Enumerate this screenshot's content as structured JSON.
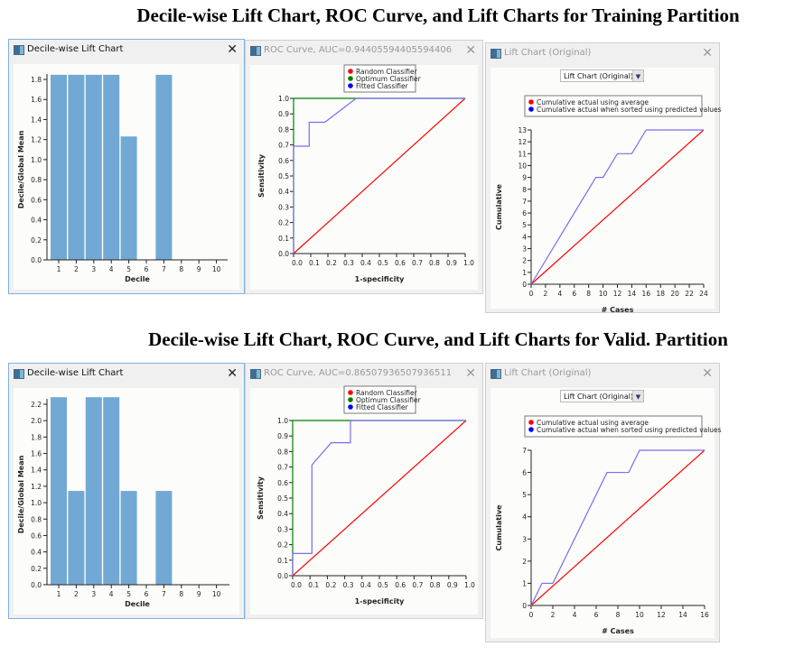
{
  "headings": {
    "training": "Decile-wise Lift Chart, ROC Curve, and Lift Charts for Training Partition",
    "valid": "Decile-wise Lift Chart, ROC Curve, and Lift Charts for Valid. Partition"
  },
  "colors": {
    "bar": "#72a9d4",
    "random": "#ff0000",
    "optimum": "#008000",
    "fitted": "#0000ff",
    "fitted_line": "#7b6cf0"
  },
  "chart_data": [
    {
      "id": "train-decile",
      "type": "bar",
      "title": "Decile-wise Lift Chart",
      "xlabel": "Decile",
      "ylabel": "Decile/Global Mean",
      "categories": [
        "1",
        "2",
        "3",
        "4",
        "5",
        "6",
        "7",
        "8",
        "9",
        "10"
      ],
      "values": [
        1.846,
        1.846,
        1.846,
        1.846,
        1.231,
        0,
        1.846,
        0,
        0,
        0
      ],
      "yticks": [
        "0.0",
        "0.2",
        "0.4",
        "0.6",
        "0.8",
        "1.0",
        "1.2",
        "1.4",
        "1.6",
        "1.8"
      ],
      "ylim": [
        0,
        1.8
      ]
    },
    {
      "id": "train-roc",
      "type": "line",
      "title": "ROC Curve, AUC=0.94405594405594406",
      "xlabel": "1-specificity",
      "ylabel": "Sensitivity",
      "ticks": [
        "0.0",
        "0.1",
        "0.2",
        "0.3",
        "0.4",
        "0.5",
        "0.6",
        "0.7",
        "0.8",
        "0.9",
        "1.0"
      ],
      "legend": [
        "Random Classifier",
        "Optimum Classifier",
        "Fitted Classifier"
      ],
      "series": [
        {
          "name": "Random Classifier",
          "points": [
            [
              0,
              0
            ],
            [
              1,
              1
            ]
          ]
        },
        {
          "name": "Optimum Classifier",
          "points": [
            [
              0,
              0
            ],
            [
              0,
              1
            ],
            [
              1,
              1
            ]
          ]
        },
        {
          "name": "Fitted Classifier",
          "points": [
            [
              0,
              0
            ],
            [
              0,
              0.692
            ],
            [
              0.091,
              0.692
            ],
            [
              0.091,
              0.846
            ],
            [
              0.182,
              0.846
            ],
            [
              0.364,
              1
            ],
            [
              1,
              1
            ]
          ]
        }
      ]
    },
    {
      "id": "train-lift",
      "type": "line",
      "title": "Lift Chart (Original)",
      "dropdown": "Lift Chart (Original)",
      "xlabel": "# Cases",
      "ylabel": "Cumulative",
      "xticks": [
        "0",
        "2",
        "4",
        "6",
        "8",
        "10",
        "12",
        "14",
        "16",
        "18",
        "20",
        "22",
        "24"
      ],
      "xlim": [
        0,
        24
      ],
      "yticks": [
        "0",
        "1",
        "2",
        "3",
        "4",
        "5",
        "6",
        "7",
        "8",
        "9",
        "10",
        "11",
        "12",
        "13"
      ],
      "ylim": [
        0,
        13
      ],
      "legend": [
        "Cumulative actual using average",
        "Cumulative actual when sorted using predicted values"
      ],
      "series": [
        {
          "name": "Cumulative actual using average",
          "points": [
            [
              0,
              0
            ],
            [
              24,
              13
            ]
          ]
        },
        {
          "name": "Cumulative actual when sorted using predicted values",
          "points": [
            [
              0,
              0
            ],
            [
              9,
              9
            ],
            [
              10,
              9
            ],
            [
              12,
              11
            ],
            [
              14,
              11
            ],
            [
              16,
              13
            ],
            [
              24,
              13
            ]
          ]
        }
      ]
    },
    {
      "id": "valid-decile",
      "type": "bar",
      "title": "Decile-wise Lift Chart",
      "xlabel": "Decile",
      "ylabel": "Decile/Global Mean",
      "categories": [
        "1",
        "2",
        "3",
        "4",
        "5",
        "6",
        "7",
        "8",
        "9",
        "10"
      ],
      "values": [
        2.286,
        1.143,
        2.286,
        2.286,
        1.143,
        0,
        1.143,
        0,
        0,
        0
      ],
      "yticks": [
        "0.0",
        "0.2",
        "0.4",
        "0.6",
        "0.8",
        "1.0",
        "1.2",
        "1.4",
        "1.6",
        "1.8",
        "2.0",
        "2.2"
      ],
      "ylim": [
        0,
        2.2
      ]
    },
    {
      "id": "valid-roc",
      "type": "line",
      "title": "ROC Curve, AUC=0.86507936507936511",
      "xlabel": "1-specificity",
      "ylabel": "Sensitivity",
      "ticks": [
        "0.0",
        "0.1",
        "0.2",
        "0.3",
        "0.4",
        "0.5",
        "0.6",
        "0.7",
        "0.8",
        "0.9",
        "1.0"
      ],
      "legend": [
        "Random Classifier",
        "Optimum Classifier",
        "Fitted Classifier"
      ],
      "series": [
        {
          "name": "Random Classifier",
          "points": [
            [
              0,
              0
            ],
            [
              1,
              1
            ]
          ]
        },
        {
          "name": "Optimum Classifier",
          "points": [
            [
              0,
              0
            ],
            [
              0,
              1
            ],
            [
              1,
              1
            ]
          ]
        },
        {
          "name": "Fitted Classifier",
          "points": [
            [
              0,
              0
            ],
            [
              0,
              0.143
            ],
            [
              0.111,
              0.143
            ],
            [
              0.111,
              0.714
            ],
            [
              0.222,
              0.857
            ],
            [
              0.333,
              0.857
            ],
            [
              0.333,
              1
            ],
            [
              1,
              1
            ]
          ]
        }
      ]
    },
    {
      "id": "valid-lift",
      "type": "line",
      "title": "Lift Chart (Original)",
      "dropdown": "Lift Chart (Original)",
      "xlabel": "# Cases",
      "ylabel": "Cumulative",
      "xticks": [
        "0",
        "2",
        "4",
        "6",
        "8",
        "10",
        "12",
        "14",
        "16"
      ],
      "xlim": [
        0,
        16
      ],
      "yticks": [
        "0",
        "1",
        "2",
        "3",
        "4",
        "5",
        "6",
        "7"
      ],
      "ylim": [
        0,
        7
      ],
      "legend": [
        "Cumulative actual using average",
        "Cumulative actual when sorted using predicted values"
      ],
      "series": [
        {
          "name": "Cumulative actual using average",
          "points": [
            [
              0,
              0
            ],
            [
              16,
              7
            ]
          ]
        },
        {
          "name": "Cumulative actual when sorted using predicted values",
          "points": [
            [
              0,
              0
            ],
            [
              1,
              1
            ],
            [
              2,
              1
            ],
            [
              7,
              6
            ],
            [
              9,
              6
            ],
            [
              10,
              7
            ],
            [
              16,
              7
            ]
          ]
        }
      ]
    }
  ]
}
